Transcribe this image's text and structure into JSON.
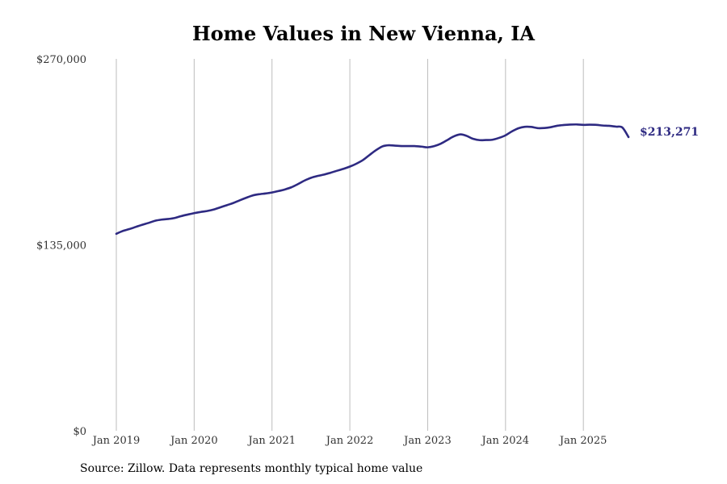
{
  "chart_data": {
    "type": "line",
    "title": "Home Values in New Vienna, IA",
    "xlabel": "",
    "ylabel": "",
    "ylim": [
      0,
      270000
    ],
    "y_ticks": [
      {
        "value": 0,
        "label": "$0"
      },
      {
        "value": 135000,
        "label": "$135,000"
      },
      {
        "value": 270000,
        "label": "$270,000"
      }
    ],
    "x_ticks": [
      {
        "value": 2019.0,
        "label": "Jan 2019"
      },
      {
        "value": 2020.0,
        "label": "Jan 2020"
      },
      {
        "value": 2021.0,
        "label": "Jan 2021"
      },
      {
        "value": 2022.0,
        "label": "Jan 2022"
      },
      {
        "value": 2023.0,
        "label": "Jan 2023"
      },
      {
        "value": 2024.0,
        "label": "Jan 2024"
      },
      {
        "value": 2025.0,
        "label": "Jan 2025"
      }
    ],
    "xlim": [
      2019.0,
      2025.6
    ],
    "grid": "vertical at year ticks",
    "line_color": "#2e2a82",
    "end_label": "$213,271",
    "series": [
      {
        "x": [
          2019.0,
          2019.08,
          2019.17,
          2019.25,
          2019.33,
          2019.42,
          2019.5,
          2019.58,
          2019.67,
          2019.75,
          2019.83,
          2019.92,
          2020.0,
          2020.08,
          2020.17,
          2020.25,
          2020.33,
          2020.42,
          2020.5,
          2020.58,
          2020.67,
          2020.75,
          2020.83,
          2020.92,
          2021.0,
          2021.08,
          2021.17,
          2021.25,
          2021.33,
          2021.42,
          2021.5,
          2021.58,
          2021.67,
          2021.75,
          2021.83,
          2021.92,
          2022.0,
          2022.08,
          2022.17,
          2022.25,
          2022.33,
          2022.42,
          2022.5,
          2022.58,
          2022.67,
          2022.75,
          2022.83,
          2022.92,
          2023.0,
          2023.08,
          2023.17,
          2023.25,
          2023.33,
          2023.42,
          2023.5,
          2023.58,
          2023.67,
          2023.75,
          2023.83,
          2023.92,
          2024.0,
          2024.08,
          2024.17,
          2024.25,
          2024.33,
          2024.42,
          2024.5,
          2024.58,
          2024.67,
          2024.75,
          2024.83,
          2024.92,
          2025.0,
          2025.08,
          2025.17,
          2025.25,
          2025.33,
          2025.42,
          2025.5,
          2025.58
        ],
        "y": [
          143000,
          145000,
          146500,
          148000,
          149500,
          151000,
          152500,
          153300,
          153800,
          154500,
          155800,
          157000,
          158000,
          158800,
          159600,
          160600,
          162100,
          163800,
          165300,
          167200,
          169200,
          170800,
          171700,
          172300,
          173000,
          174000,
          175300,
          176800,
          179000,
          181700,
          183600,
          184900,
          186000,
          187300,
          188700,
          190200,
          191800,
          193800,
          196600,
          200100,
          203500,
          206500,
          207300,
          207000,
          206700,
          206700,
          206700,
          206300,
          205800,
          206600,
          208500,
          211000,
          213600,
          215200,
          214100,
          212000,
          211000,
          211100,
          211300,
          212700,
          214500,
          217300,
          219700,
          220700,
          220600,
          219700,
          219800,
          220400,
          221500,
          222000,
          222300,
          222400,
          222100,
          222200,
          222100,
          221600,
          221400,
          220800,
          213271,
          213271
        ]
      }
    ]
  },
  "footer": {
    "source": "Source: Zillow. Data represents monthly typical home value"
  }
}
